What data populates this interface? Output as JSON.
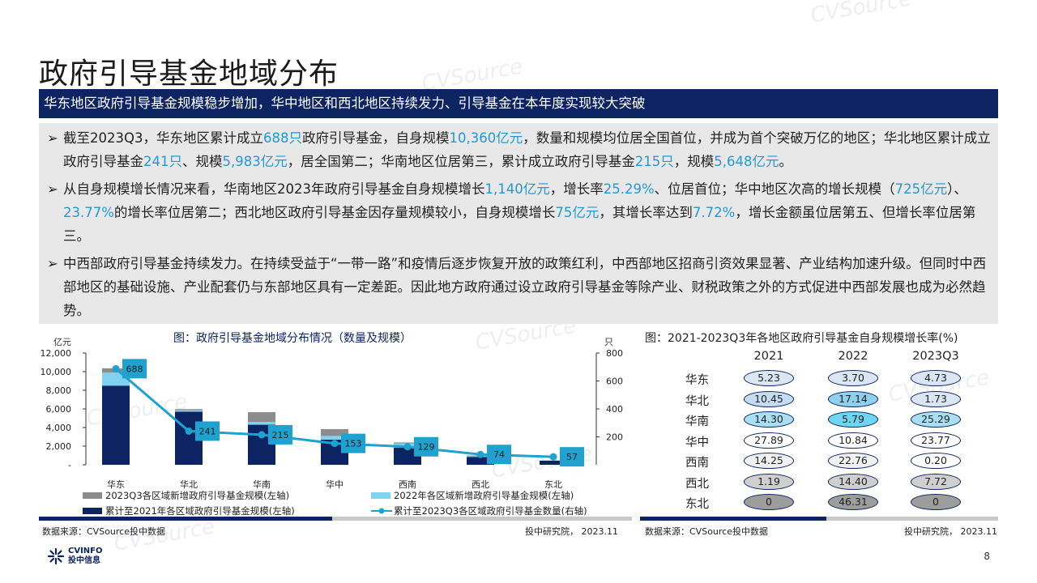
{
  "page": {
    "title": "政府引导基金地域分布",
    "banner": "华东地区政府引导基金规模稳步增加，华中地区和西北地区持续发力、引导基金在本年度实现较大突破",
    "page_number": "8",
    "watermark": "CVSource",
    "watermark_cn": "投 中 数 据"
  },
  "bullets": [
    {
      "marker": "➢",
      "segments": [
        {
          "t": "截至2023Q3，华东地区累计成立",
          "h": false
        },
        {
          "t": "688只",
          "h": true
        },
        {
          "t": "政府引导基金，自身规模",
          "h": false
        },
        {
          "t": "10,360亿元",
          "h": true
        },
        {
          "t": "，数量和规模均位居全国首位，并成为首个突破万亿的地区；华北地区累计成立政府引导基金",
          "h": false
        },
        {
          "t": "241只",
          "h": true
        },
        {
          "t": "、规模",
          "h": false
        },
        {
          "t": "5,983亿元",
          "h": true
        },
        {
          "t": "，居全国第二；华南地区位居第三，累计成立政府引导基金",
          "h": false
        },
        {
          "t": "215只",
          "h": true
        },
        {
          "t": "，规模",
          "h": false
        },
        {
          "t": "5,648亿元",
          "h": true
        },
        {
          "t": "。",
          "h": false
        }
      ]
    },
    {
      "marker": "➢",
      "segments": [
        {
          "t": "从自身规模增长情况来看，华南地区2023年政府引导基金自身规模增长",
          "h": false
        },
        {
          "t": "1,140亿元",
          "h": true
        },
        {
          "t": "，增长率",
          "h": false
        },
        {
          "t": "25.29%",
          "h": true
        },
        {
          "t": "、位居首位；华中地区次高的增长规模（",
          "h": false
        },
        {
          "t": "725亿元",
          "h": true
        },
        {
          "t": "）、",
          "h": false
        },
        {
          "t": "23.77%",
          "h": true
        },
        {
          "t": "的增长率位居第二；西北地区政府引导基金因存量规模较小，自身规模增长",
          "h": false
        },
        {
          "t": "75亿元",
          "h": true
        },
        {
          "t": "，其增长率达到",
          "h": false
        },
        {
          "t": "7.72%",
          "h": true
        },
        {
          "t": "，增长金额虽位居第五、但增长率位居第三。",
          "h": false
        }
      ]
    },
    {
      "marker": "➢",
      "segments": [
        {
          "t": "中西部政府引导基金持续发力。在持续受益于“一带一路”和疫情后逐步恢复开放的政策红利，中西部地区招商引资效果显著、产业结构加速升级。但同时中西部地区的基础设施、产业配套仍与东部地区具有一定差距。因此地方政府通过设立政府引导基金等除产业、财税政策之外的方式促进中西部发展也成为必然趋势。",
          "h": false
        }
      ]
    }
  ],
  "left_chart": {
    "title": "图：政府引导基金地域分布情况（数量及规模）",
    "left_unit": "亿元",
    "right_unit": "只",
    "source": "数据来源：CVSource投中数据",
    "org": "投中研究院， 2023.11"
  },
  "right_chart": {
    "title": "图：2021-2023Q3年各地区政府引导基金自身规模增长率(%)",
    "source": "数据来源：CVSource投中数据",
    "org": "投中研究院， 2023.11",
    "columns": [
      "2021",
      "2022",
      "2023Q3"
    ],
    "rows": [
      {
        "region": "华东",
        "values": [
          "5.23",
          "3.70",
          "4.73"
        ],
        "colors": [
          "#dbe6f5",
          "#dbe6f5",
          "#dbe6f5"
        ]
      },
      {
        "region": "华北",
        "values": [
          "10.45",
          "17.14",
          "1.73"
        ],
        "colors": [
          "#c6dcf2",
          "#8fd0ee",
          "#dbe6f5"
        ]
      },
      {
        "region": "华南",
        "values": [
          "14.30",
          "5.79",
          "25.29"
        ],
        "colors": [
          "#a8dff2",
          "#6dd6f2",
          "#a8dff2"
        ]
      },
      {
        "region": "华中",
        "values": [
          "27.89",
          "10.84",
          "23.77"
        ],
        "colors": [
          "#ffffff",
          "#ffffff",
          "#ffffff"
        ]
      },
      {
        "region": "西南",
        "values": [
          "14.25",
          "22.76",
          "0.20"
        ],
        "colors": [
          "#f1f1f1",
          "#f1f1f1",
          "#ffffff"
        ]
      },
      {
        "region": "西北",
        "values": [
          "1.19",
          "14.40",
          "7.72"
        ],
        "colors": [
          "#cfcfcf",
          "#cfcfcf",
          "#cfcfcf"
        ]
      },
      {
        "region": "东北",
        "values": [
          "0",
          "46.31",
          "0"
        ],
        "colors": [
          "#9d9d9d",
          "#9d9d9d",
          "#9d9d9d"
        ]
      }
    ]
  },
  "chart_data": {
    "type": "bar",
    "title": "图：政府引导基金地域分布情况（数量及规模）",
    "categories": [
      "华东",
      "华北",
      "华南",
      "华中",
      "西南",
      "西北",
      "东北"
    ],
    "ylabel": "亿元",
    "y2label": "只",
    "ylim": [
      0,
      12000
    ],
    "y2lim": [
      0,
      800
    ],
    "yticks": [
      "12,000",
      "10,000",
      "8,000",
      "6,000",
      "4,000",
      "2,000",
      "-"
    ],
    "y2ticks": [
      "800",
      "600",
      "400",
      "200"
    ],
    "series": [
      {
        "name": "累计至2021年各区域政府引导基金规模(左轴)",
        "kind": "bar",
        "color": "#0c2461",
        "values": [
          8500,
          5700,
          4300,
          2700,
          1850,
          850,
          450
        ]
      },
      {
        "name": "2022年各区域新增政府引导基金规模(左轴)",
        "kind": "bar",
        "color": "#7fd3f0",
        "values": [
          1400,
          150,
          300,
          400,
          450,
          60,
          20
        ]
      },
      {
        "name": "2023Q3各区域新增政府引导基金规模(左轴)",
        "kind": "bar",
        "color": "#8c8c8c",
        "values": [
          460,
          130,
          1050,
          730,
          100,
          80,
          0
        ]
      },
      {
        "name": "累计至2023Q3各区域政府引导基金数量(右轴)",
        "kind": "line",
        "color": "#1fa2cf",
        "values": [
          688,
          241,
          215,
          153,
          129,
          74,
          57
        ]
      }
    ],
    "data_labels": [
      "688",
      "241",
      "215",
      "153",
      "129",
      "74",
      "57"
    ],
    "legend": "bottom"
  }
}
